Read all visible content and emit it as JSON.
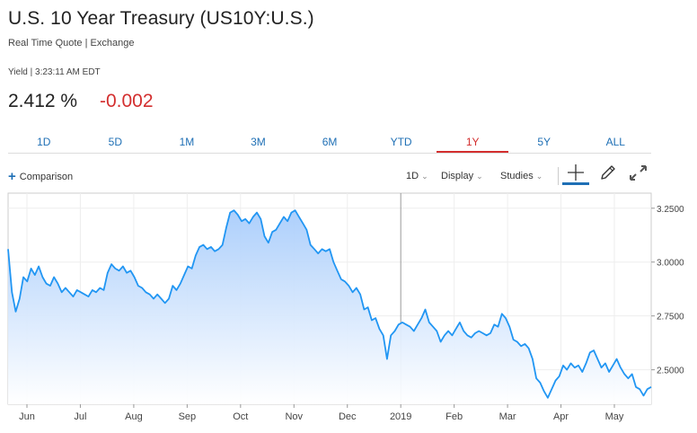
{
  "header": {
    "title": "U.S. 10 Year Treasury (US10Y:U.S.)",
    "subtitle": "Real Time Quote | Exchange",
    "yield_line": "Yield | 3:23:11 AM EDT",
    "price": "2.412 %",
    "change": "-0.002",
    "change_color": "#d32f2f"
  },
  "tabs": [
    {
      "label": "1D",
      "active": false
    },
    {
      "label": "5D",
      "active": false
    },
    {
      "label": "1M",
      "active": false
    },
    {
      "label": "3M",
      "active": false
    },
    {
      "label": "6M",
      "active": false
    },
    {
      "label": "YTD",
      "active": false
    },
    {
      "label": "1Y",
      "active": true
    },
    {
      "label": "5Y",
      "active": false
    },
    {
      "label": "ALL",
      "active": false
    }
  ],
  "toolbar": {
    "comparison_label": "Comparison",
    "interval_label": "1D",
    "display_label": "Display",
    "studies_label": "Studies",
    "icons": [
      "crosshair-icon",
      "draw-pencil-icon",
      "expand-icon"
    ]
  },
  "colors": {
    "accent": "#1e6fb5",
    "line": "#2196f3",
    "down": "#d32f2f"
  },
  "chart_data": {
    "type": "area",
    "x_labels": [
      "Jun",
      "Jul",
      "Aug",
      "Sep",
      "Oct",
      "Nov",
      "Dec",
      "2019",
      "Feb",
      "Mar",
      "Apr",
      "May"
    ],
    "y_ticks": [
      "3.2500",
      "3.0000",
      "2.7500",
      "2.5000"
    ],
    "ylim": [
      2.34,
      3.32
    ],
    "y_axis_side": "right",
    "grid": true,
    "series": [
      {
        "values": [
          3.06,
          2.86,
          2.77,
          2.83,
          2.93,
          2.91,
          2.97,
          2.94,
          2.98,
          2.93,
          2.9,
          2.89,
          2.93,
          2.9,
          2.86,
          2.88,
          2.86,
          2.84,
          2.87,
          2.86,
          2.85,
          2.84,
          2.87,
          2.86,
          2.88,
          2.87,
          2.95,
          2.99,
          2.97,
          2.96,
          2.98,
          2.95,
          2.96,
          2.93,
          2.89,
          2.88,
          2.86,
          2.85,
          2.83,
          2.85,
          2.83,
          2.81,
          2.83,
          2.89,
          2.87,
          2.9,
          2.94,
          2.98,
          2.97,
          3.03,
          3.07,
          3.08,
          3.06,
          3.07,
          3.05,
          3.06,
          3.08,
          3.16,
          3.23,
          3.24,
          3.22,
          3.19,
          3.2,
          3.18,
          3.21,
          3.23,
          3.2,
          3.12,
          3.09,
          3.14,
          3.15,
          3.18,
          3.21,
          3.19,
          3.23,
          3.24,
          3.21,
          3.18,
          3.15,
          3.08,
          3.06,
          3.04,
          3.06,
          3.05,
          3.06,
          3.0,
          2.96,
          2.92,
          2.91,
          2.89,
          2.86,
          2.88,
          2.85,
          2.78,
          2.79,
          2.73,
          2.74,
          2.69,
          2.66,
          2.55,
          2.66,
          2.68,
          2.71,
          2.72,
          2.71,
          2.7,
          2.68,
          2.71,
          2.74,
          2.78,
          2.72,
          2.7,
          2.68,
          2.63,
          2.66,
          2.68,
          2.66,
          2.69,
          2.72,
          2.68,
          2.66,
          2.65,
          2.67,
          2.68,
          2.67,
          2.66,
          2.67,
          2.71,
          2.7,
          2.76,
          2.74,
          2.7,
          2.64,
          2.63,
          2.61,
          2.62,
          2.6,
          2.55,
          2.46,
          2.44,
          2.4,
          2.37,
          2.41,
          2.45,
          2.47,
          2.52,
          2.5,
          2.53,
          2.51,
          2.52,
          2.49,
          2.53,
          2.58,
          2.59,
          2.55,
          2.51,
          2.53,
          2.49,
          2.52,
          2.55,
          2.51,
          2.48,
          2.46,
          2.48,
          2.42,
          2.41,
          2.38,
          2.41,
          2.42
        ]
      }
    ]
  }
}
